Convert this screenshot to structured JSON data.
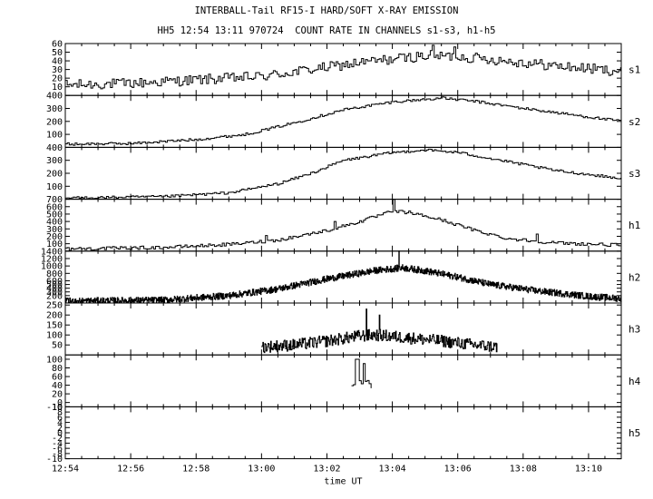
{
  "figure": {
    "title_line1": "INTERBALL-Tail RF15-I HARD/SOFT X-RAY EMISSION",
    "title_line2": "HH5 12:54 13:11 970724  COUNT RATE IN CHANNELS s1-s3, h1-h5",
    "xlabel": "time UT"
  },
  "chart_data": {
    "type": "line",
    "title": "INTERBALL-Tail RF15-I HARD/SOFT X-RAY EMISSION",
    "subtitle": "HH5 12:54 13:11 970724  COUNT RATE IN CHANNELS s1-s3, h1-h5",
    "xlabel": "time UT",
    "x_range_minutes": [
      0,
      17
    ],
    "x_ticks": [
      {
        "m": 0,
        "label": "12:54"
      },
      {
        "m": 2,
        "label": "12:56"
      },
      {
        "m": 4,
        "label": "12:58"
      },
      {
        "m": 6,
        "label": "13:00"
      },
      {
        "m": 8,
        "label": "13:02"
      },
      {
        "m": 10,
        "label": "13:04"
      },
      {
        "m": 12,
        "label": "13:06"
      },
      {
        "m": 14,
        "label": "13:08"
      },
      {
        "m": 16,
        "label": "13:10"
      }
    ],
    "panels": [
      {
        "channel": "s1",
        "ylim": [
          0,
          60
        ],
        "yticks": [
          10,
          20,
          30,
          40,
          50,
          60
        ],
        "profile": [
          [
            0.0,
            12
          ],
          [
            2.0,
            14
          ],
          [
            4.0,
            18
          ],
          [
            6.0,
            22
          ],
          [
            7.5,
            30
          ],
          [
            9.0,
            38
          ],
          [
            10.0,
            42
          ],
          [
            11.0,
            46
          ],
          [
            12.0,
            45
          ],
          [
            13.5,
            40
          ],
          [
            15.0,
            34
          ],
          [
            17.0,
            28
          ]
        ],
        "noise": 6,
        "spikes": [
          [
            11.2,
            58
          ],
          [
            11.9,
            56
          ]
        ]
      },
      {
        "channel": "s2",
        "ylim": [
          0,
          400
        ],
        "yticks": [
          100,
          200,
          300,
          400
        ],
        "profile": [
          [
            0.0,
            25
          ],
          [
            2.0,
            30
          ],
          [
            4.0,
            60
          ],
          [
            5.5,
            100
          ],
          [
            7.0,
            190
          ],
          [
            8.5,
            290
          ],
          [
            10.0,
            350
          ],
          [
            11.0,
            370
          ],
          [
            11.5,
            380
          ],
          [
            12.5,
            355
          ],
          [
            14.0,
            300
          ],
          [
            15.5,
            250
          ],
          [
            17.0,
            200
          ]
        ],
        "noise": 10,
        "spikes": []
      },
      {
        "channel": "s3",
        "ylim": [
          0,
          400
        ],
        "yticks": [
          100,
          200,
          300,
          400
        ],
        "profile": [
          [
            0.0,
            10
          ],
          [
            3.0,
            20
          ],
          [
            5.0,
            50
          ],
          [
            6.5,
            120
          ],
          [
            7.5,
            200
          ],
          [
            8.5,
            300
          ],
          [
            10.0,
            360
          ],
          [
            11.0,
            380
          ],
          [
            12.0,
            360
          ],
          [
            13.5,
            290
          ],
          [
            15.0,
            220
          ],
          [
            17.0,
            160
          ]
        ],
        "noise": 10,
        "spikes": []
      },
      {
        "channel": "h1",
        "ylim": [
          0,
          700
        ],
        "yticks": [
          100,
          200,
          300,
          400,
          500,
          600,
          700
        ],
        "profile": [
          [
            0.0,
            30
          ],
          [
            3.0,
            50
          ],
          [
            5.0,
            90
          ],
          [
            6.5,
            150
          ],
          [
            8.0,
            280
          ],
          [
            9.0,
            400
          ],
          [
            10.0,
            540
          ],
          [
            10.5,
            520
          ],
          [
            11.5,
            420
          ],
          [
            12.5,
            280
          ],
          [
            13.5,
            170
          ],
          [
            15.0,
            110
          ],
          [
            17.0,
            80
          ]
        ],
        "noise": 22,
        "spikes": [
          [
            10.0,
            700
          ],
          [
            8.2,
            400
          ],
          [
            14.4,
            230
          ],
          [
            6.1,
            210
          ]
        ]
      },
      {
        "channel": "h2",
        "ylim": [
          0,
          1400
        ],
        "yticks": [
          200,
          300,
          400,
          500,
          600,
          800,
          1000,
          1200,
          1400
        ],
        "profile": [
          [
            0.0,
            50
          ],
          [
            3.0,
            80
          ],
          [
            5.0,
            200
          ],
          [
            6.5,
            380
          ],
          [
            8.0,
            650
          ],
          [
            9.5,
            880
          ],
          [
            10.3,
            950
          ],
          [
            11.0,
            870
          ],
          [
            12.0,
            700
          ],
          [
            13.0,
            500
          ],
          [
            14.5,
            320
          ],
          [
            16.0,
            180
          ],
          [
            17.0,
            120
          ]
        ],
        "noise": 90,
        "spikes": [
          [
            10.2,
            1400
          ]
        ]
      },
      {
        "channel": "h3",
        "ylim": [
          0,
          260
        ],
        "yticks": [
          50,
          100,
          150,
          200,
          250
        ],
        "x_start": 6.0,
        "x_end": 13.2,
        "profile": [
          [
            6.0,
            40
          ],
          [
            7.0,
            50
          ],
          [
            8.0,
            70
          ],
          [
            9.0,
            95
          ],
          [
            9.5,
            100
          ],
          [
            10.5,
            85
          ],
          [
            11.5,
            70
          ],
          [
            12.5,
            50
          ],
          [
            13.2,
            40
          ]
        ],
        "noise": 30,
        "spikes": [
          [
            9.2,
            230
          ],
          [
            9.6,
            200
          ]
        ]
      },
      {
        "channel": "h4",
        "ylim": [
          -10,
          110
        ],
        "yticks": [
          -10,
          0,
          20,
          40,
          60,
          80,
          100
        ],
        "x_start": 8.75,
        "x_end": 9.4,
        "profile": [
          [
            8.75,
            35
          ],
          [
            9.0,
            45
          ],
          [
            9.2,
            40
          ],
          [
            9.4,
            35
          ]
        ],
        "noise": 12,
        "spikes": [
          [
            8.9,
            100
          ],
          [
            9.1,
            90
          ]
        ]
      },
      {
        "channel": "h5",
        "ylim": [
          -10,
          10
        ],
        "yticks": [
          -10,
          -8,
          -6,
          -4,
          -2,
          0,
          2,
          4,
          6,
          8,
          10
        ],
        "profile": [],
        "noise": 0,
        "spikes": []
      }
    ]
  }
}
